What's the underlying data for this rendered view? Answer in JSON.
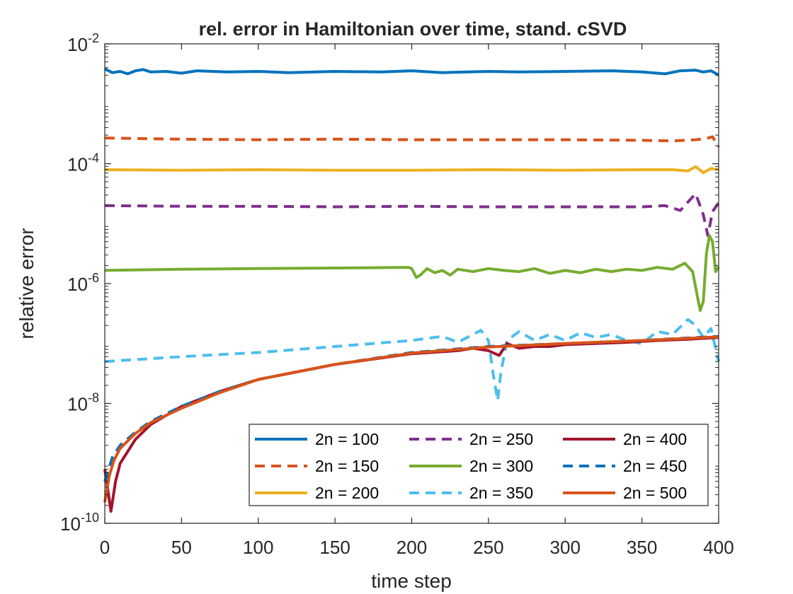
{
  "chart_data": {
    "type": "line",
    "title": "rel. error in Hamiltonian over time, stand. cSVD",
    "xlabel": "time step",
    "ylabel": "relative error",
    "xlim": [
      0,
      400
    ],
    "ylim_log10": [
      -10,
      -2
    ],
    "yscale": "log",
    "grid": false,
    "legend_position": "bottom-right",
    "xticks": [
      "0",
      "50",
      "100",
      "150",
      "200",
      "250",
      "300",
      "350",
      "400"
    ],
    "yticks": [
      {
        "base": "10",
        "exp": "-10"
      },
      {
        "base": "10",
        "exp": "-8"
      },
      {
        "base": "10",
        "exp": "-6"
      },
      {
        "base": "10",
        "exp": "-4"
      },
      {
        "base": "10",
        "exp": "-2"
      }
    ],
    "series": [
      {
        "name": "2n = 100",
        "color": "#0072BD",
        "dash": "solid",
        "points": [
          [
            0,
            -2.42
          ],
          [
            5,
            -2.48
          ],
          [
            10,
            -2.46
          ],
          [
            15,
            -2.5
          ],
          [
            20,
            -2.45
          ],
          [
            25,
            -2.43
          ],
          [
            30,
            -2.47
          ],
          [
            40,
            -2.46
          ],
          [
            50,
            -2.49
          ],
          [
            60,
            -2.45
          ],
          [
            80,
            -2.47
          ],
          [
            100,
            -2.46
          ],
          [
            120,
            -2.48
          ],
          [
            150,
            -2.46
          ],
          [
            180,
            -2.47
          ],
          [
            200,
            -2.45
          ],
          [
            220,
            -2.48
          ],
          [
            250,
            -2.46
          ],
          [
            270,
            -2.47
          ],
          [
            300,
            -2.46
          ],
          [
            330,
            -2.45
          ],
          [
            350,
            -2.47
          ],
          [
            365,
            -2.5
          ],
          [
            375,
            -2.45
          ],
          [
            385,
            -2.44
          ],
          [
            390,
            -2.47
          ],
          [
            395,
            -2.45
          ],
          [
            400,
            -2.52
          ]
        ]
      },
      {
        "name": "2n = 150",
        "color": "#D95319",
        "dash": "dashed",
        "points": [
          [
            0,
            -3.57
          ],
          [
            20,
            -3.58
          ],
          [
            50,
            -3.59
          ],
          [
            100,
            -3.6
          ],
          [
            150,
            -3.59
          ],
          [
            200,
            -3.6
          ],
          [
            250,
            -3.6
          ],
          [
            300,
            -3.6
          ],
          [
            350,
            -3.61
          ],
          [
            370,
            -3.62
          ],
          [
            385,
            -3.6
          ],
          [
            392,
            -3.58
          ],
          [
            396,
            -3.55
          ],
          [
            400,
            -3.72
          ]
        ]
      },
      {
        "name": "2n = 200",
        "color": "#EDB120",
        "dash": "solid",
        "points": [
          [
            0,
            -4.1
          ],
          [
            50,
            -4.11
          ],
          [
            100,
            -4.1
          ],
          [
            150,
            -4.11
          ],
          [
            200,
            -4.11
          ],
          [
            250,
            -4.1
          ],
          [
            300,
            -4.11
          ],
          [
            350,
            -4.1
          ],
          [
            370,
            -4.1
          ],
          [
            380,
            -4.12
          ],
          [
            385,
            -4.05
          ],
          [
            390,
            -4.15
          ],
          [
            395,
            -4.08
          ],
          [
            400,
            -4.1
          ]
        ]
      },
      {
        "name": "2n = 250",
        "color": "#7E2F8E",
        "dash": "dashed",
        "points": [
          [
            0,
            -4.7
          ],
          [
            50,
            -4.71
          ],
          [
            100,
            -4.71
          ],
          [
            150,
            -4.72
          ],
          [
            200,
            -4.71
          ],
          [
            250,
            -4.72
          ],
          [
            300,
            -4.72
          ],
          [
            350,
            -4.72
          ],
          [
            365,
            -4.7
          ],
          [
            375,
            -4.78
          ],
          [
            385,
            -4.5
          ],
          [
            390,
            -4.85
          ],
          [
            393,
            -5.2
          ],
          [
            396,
            -4.8
          ],
          [
            400,
            -4.65
          ]
        ]
      },
      {
        "name": "2n = 300",
        "color": "#77AC30",
        "dash": "solid",
        "points": [
          [
            0,
            -5.78
          ],
          [
            50,
            -5.76
          ],
          [
            100,
            -5.75
          ],
          [
            150,
            -5.74
          ],
          [
            198,
            -5.73
          ],
          [
            200,
            -5.75
          ],
          [
            203,
            -5.9
          ],
          [
            206,
            -5.85
          ],
          [
            210,
            -5.75
          ],
          [
            215,
            -5.82
          ],
          [
            220,
            -5.78
          ],
          [
            225,
            -5.86
          ],
          [
            230,
            -5.76
          ],
          [
            240,
            -5.8
          ],
          [
            250,
            -5.75
          ],
          [
            260,
            -5.78
          ],
          [
            270,
            -5.8
          ],
          [
            280,
            -5.75
          ],
          [
            290,
            -5.83
          ],
          [
            300,
            -5.78
          ],
          [
            310,
            -5.82
          ],
          [
            320,
            -5.76
          ],
          [
            330,
            -5.8
          ],
          [
            340,
            -5.76
          ],
          [
            350,
            -5.78
          ],
          [
            360,
            -5.73
          ],
          [
            370,
            -5.76
          ],
          [
            378,
            -5.66
          ],
          [
            383,
            -5.8
          ],
          [
            386,
            -6.2
          ],
          [
            388,
            -6.45
          ],
          [
            390,
            -6.3
          ],
          [
            392,
            -5.5
          ],
          [
            394,
            -5.2
          ],
          [
            396,
            -5.3
          ],
          [
            398,
            -5.8
          ],
          [
            400,
            -5.72
          ]
        ]
      },
      {
        "name": "2n = 350",
        "color": "#4DBEEE",
        "dash": "dashed",
        "points": [
          [
            0,
            -7.3
          ],
          [
            50,
            -7.22
          ],
          [
            100,
            -7.15
          ],
          [
            150,
            -7.05
          ],
          [
            200,
            -6.95
          ],
          [
            220,
            -6.88
          ],
          [
            230,
            -6.98
          ],
          [
            240,
            -6.85
          ],
          [
            245,
            -6.78
          ],
          [
            250,
            -6.95
          ],
          [
            253,
            -7.5
          ],
          [
            256,
            -7.95
          ],
          [
            258,
            -7.5
          ],
          [
            262,
            -6.95
          ],
          [
            270,
            -6.8
          ],
          [
            280,
            -6.95
          ],
          [
            290,
            -6.85
          ],
          [
            300,
            -6.95
          ],
          [
            310,
            -6.82
          ],
          [
            320,
            -6.9
          ],
          [
            330,
            -6.85
          ],
          [
            340,
            -6.95
          ],
          [
            350,
            -7.0
          ],
          [
            360,
            -6.8
          ],
          [
            370,
            -6.85
          ],
          [
            380,
            -6.6
          ],
          [
            385,
            -6.7
          ],
          [
            390,
            -6.9
          ],
          [
            395,
            -6.75
          ],
          [
            400,
            -7.3
          ]
        ]
      },
      {
        "name": "2n = 400",
        "color": "#A2142F",
        "dash": "solid",
        "points": [
          [
            0,
            -9.1
          ],
          [
            4,
            -9.8
          ],
          [
            7,
            -9.3
          ],
          [
            10,
            -9.0
          ],
          [
            15,
            -8.8
          ],
          [
            20,
            -8.6
          ],
          [
            30,
            -8.35
          ],
          [
            50,
            -8.05
          ],
          [
            75,
            -7.8
          ],
          [
            100,
            -7.6
          ],
          [
            150,
            -7.35
          ],
          [
            200,
            -7.17
          ],
          [
            230,
            -7.12
          ],
          [
            240,
            -7.08
          ],
          [
            250,
            -7.12
          ],
          [
            257,
            -7.2
          ],
          [
            262,
            -7.0
          ],
          [
            270,
            -7.08
          ],
          [
            280,
            -7.05
          ],
          [
            290,
            -7.05
          ],
          [
            300,
            -7.02
          ],
          [
            320,
            -7.0
          ],
          [
            340,
            -6.98
          ],
          [
            360,
            -6.95
          ],
          [
            380,
            -6.93
          ],
          [
            400,
            -6.9
          ]
        ]
      },
      {
        "name": "2n = 450",
        "color": "#0072BD",
        "dash": "dashed",
        "points": [
          [
            0,
            -9.3
          ],
          [
            5,
            -8.9
          ],
          [
            10,
            -8.7
          ],
          [
            20,
            -8.48
          ],
          [
            30,
            -8.3
          ],
          [
            50,
            -8.05
          ],
          [
            75,
            -7.8
          ],
          [
            100,
            -7.6
          ],
          [
            150,
            -7.35
          ],
          [
            200,
            -7.15
          ],
          [
            250,
            -7.05
          ],
          [
            300,
            -7.0
          ],
          [
            350,
            -6.95
          ],
          [
            400,
            -6.88
          ]
        ]
      },
      {
        "name": "2n = 500",
        "color": "#D95319",
        "dash": "solid",
        "points": [
          [
            0,
            -9.65
          ],
          [
            3,
            -9.2
          ],
          [
            6,
            -8.95
          ],
          [
            10,
            -8.75
          ],
          [
            20,
            -8.5
          ],
          [
            30,
            -8.32
          ],
          [
            50,
            -8.08
          ],
          [
            75,
            -7.82
          ],
          [
            100,
            -7.6
          ],
          [
            150,
            -7.35
          ],
          [
            200,
            -7.16
          ],
          [
            250,
            -7.06
          ],
          [
            300,
            -7.0
          ],
          [
            350,
            -6.95
          ],
          [
            400,
            -6.89
          ]
        ]
      }
    ]
  }
}
